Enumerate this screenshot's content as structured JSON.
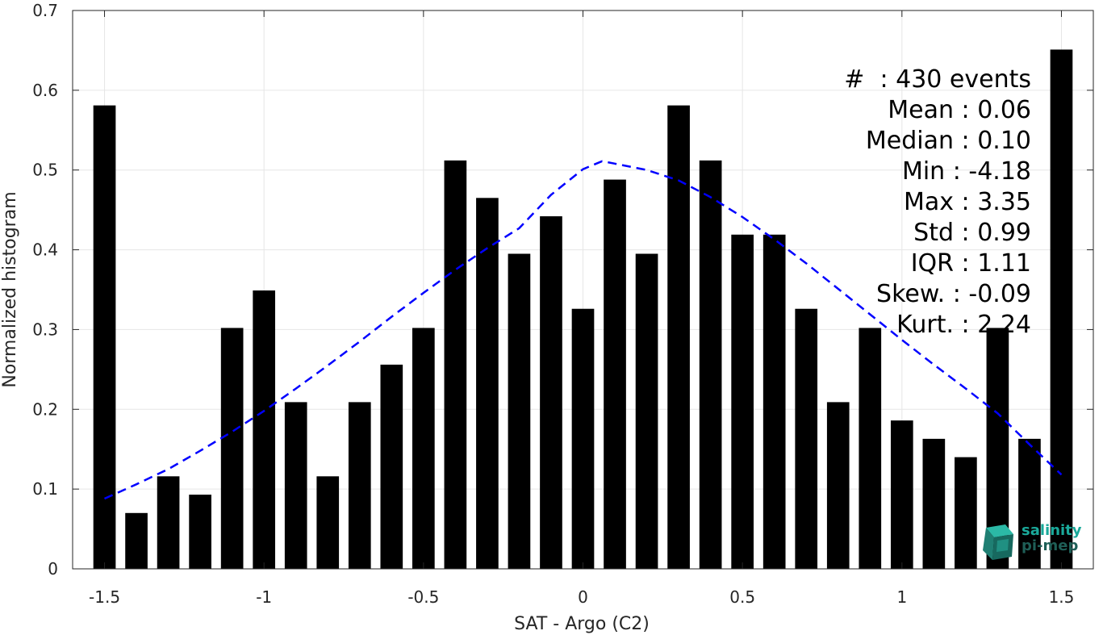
{
  "colors": {
    "bars": "#000000",
    "fit": "#0000ff",
    "grid": "#e6e6e6",
    "axis": "#262626",
    "logo_primary": "#1aa99a",
    "logo_secondary": "#1f5f57"
  },
  "logo": {
    "line1": "salinity",
    "line2": "pi-mep",
    "icon": "salinity-cube-icon"
  },
  "stats": [
    {
      "key": "#  ",
      "value": "430 events"
    },
    {
      "key": "Mean ",
      "value": "0.06"
    },
    {
      "key": "Median ",
      "value": "0.10"
    },
    {
      "key": "Min ",
      "value": "-4.18"
    },
    {
      "key": "Max ",
      "value": "3.35"
    },
    {
      "key": "Std ",
      "value": "0.99"
    },
    {
      "key": "IQR ",
      "value": "1.11"
    },
    {
      "key": "Skew. ",
      "value": "-0.09"
    },
    {
      "key": "Kurt. ",
      "value": "2.24"
    }
  ],
  "chart_data": {
    "type": "bar",
    "xlabel": "SAT - Argo (C2)",
    "ylabel": "Normalized histogram",
    "xlim": [
      -1.6,
      1.6
    ],
    "ylim": [
      0,
      0.7
    ],
    "grid": true,
    "x_ticks": [
      -1.5,
      -1,
      -0.5,
      0,
      0.5,
      1,
      1.5
    ],
    "x_tick_labels": [
      "-1.5",
      "-1",
      "-0.5",
      "0",
      "0.5",
      "1",
      "1.5"
    ],
    "y_ticks": [
      0,
      0.1,
      0.2,
      0.3,
      0.4,
      0.5,
      0.6,
      0.7
    ],
    "y_tick_labels": [
      "0",
      "0.1",
      "0.2",
      "0.3",
      "0.4",
      "0.5",
      "0.6",
      "0.7"
    ],
    "bar_width": 0.07,
    "x": [
      -1.5,
      -1.4,
      -1.3,
      -1.2,
      -1.1,
      -1.0,
      -0.9,
      -0.8,
      -0.7,
      -0.6,
      -0.5,
      -0.4,
      -0.3,
      -0.2,
      -0.1,
      0.0,
      0.1,
      0.2,
      0.3,
      0.4,
      0.5,
      0.6,
      0.7,
      0.8,
      0.9,
      1.0,
      1.1,
      1.2,
      1.3,
      1.4,
      1.5
    ],
    "values": [
      0.581,
      0.07,
      0.116,
      0.093,
      0.302,
      0.349,
      0.209,
      0.116,
      0.209,
      0.256,
      0.302,
      0.512,
      0.465,
      0.395,
      0.442,
      0.326,
      0.488,
      0.395,
      0.581,
      0.512,
      0.419,
      0.419,
      0.326,
      0.209,
      0.302,
      0.186,
      0.163,
      0.14,
      0.302,
      0.163,
      0.651
    ],
    "fit": {
      "style": "dashed",
      "x": [
        -1.5,
        -1.4,
        -1.3,
        -1.2,
        -1.1,
        -1.0,
        -0.9,
        -0.8,
        -0.7,
        -0.6,
        -0.5,
        -0.4,
        -0.3,
        -0.2,
        -0.1,
        0.0,
        0.06,
        0.1,
        0.2,
        0.3,
        0.4,
        0.5,
        0.6,
        0.7,
        0.8,
        0.9,
        1.0,
        1.1,
        1.2,
        1.3,
        1.4,
        1.5
      ],
      "y": [
        0.088,
        0.106,
        0.125,
        0.148,
        0.172,
        0.198,
        0.226,
        0.255,
        0.285,
        0.316,
        0.346,
        0.375,
        0.402,
        0.427,
        0.469,
        0.501,
        0.511,
        0.508,
        0.5,
        0.487,
        0.466,
        0.441,
        0.413,
        0.383,
        0.351,
        0.319,
        0.287,
        0.256,
        0.226,
        0.195,
        0.156,
        0.118
      ]
    }
  }
}
